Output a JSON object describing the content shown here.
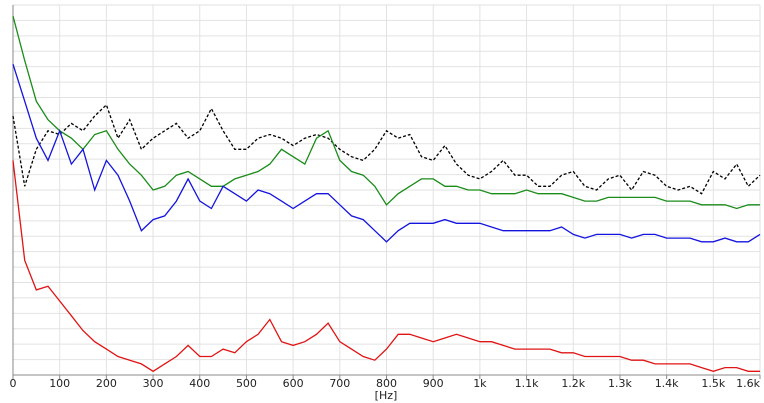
{
  "chart_data": {
    "type": "line",
    "xlabel": "[Hz]",
    "x": [
      0,
      25,
      50,
      75,
      100,
      125,
      150,
      175,
      200,
      225,
      250,
      275,
      300,
      325,
      350,
      375,
      400,
      425,
      450,
      475,
      500,
      525,
      550,
      575,
      600,
      625,
      650,
      675,
      700,
      725,
      750,
      775,
      800,
      825,
      850,
      875,
      900,
      925,
      950,
      975,
      1000,
      1025,
      1050,
      1075,
      1100,
      1125,
      1150,
      1175,
      1200,
      1225,
      1250,
      1275,
      1300,
      1325,
      1350,
      1375,
      1400,
      1425,
      1450,
      1475,
      1500,
      1525,
      1550,
      1575,
      1600
    ],
    "series": [
      {
        "color": "#000000",
        "dash": true,
        "values": [
          70,
          51,
          61,
          66,
          65,
          68,
          66,
          70,
          73,
          64,
          69,
          61,
          64,
          66,
          68,
          64,
          66,
          72,
          66,
          61,
          61,
          64,
          65,
          64,
          62,
          64,
          65,
          64,
          61,
          59,
          58,
          61,
          66,
          64,
          65,
          59,
          58,
          62,
          57,
          54,
          53,
          55,
          58,
          54,
          54,
          51,
          51,
          54,
          55,
          51,
          50,
          53,
          54,
          50,
          55,
          54,
          51,
          50,
          51,
          49,
          55,
          53,
          57,
          51,
          54
        ]
      },
      {
        "color": "#1a8c1a",
        "dash": false,
        "values": [
          97,
          85,
          74,
          69,
          66,
          64,
          61,
          65,
          66,
          61,
          57,
          54,
          50,
          51,
          54,
          55,
          53,
          51,
          51,
          53,
          54,
          55,
          57,
          61,
          59,
          57,
          64,
          66,
          58,
          55,
          54,
          51,
          46,
          49,
          51,
          53,
          53,
          51,
          51,
          50,
          50,
          49,
          49,
          49,
          50,
          49,
          49,
          49,
          48,
          47,
          47,
          48,
          48,
          48,
          48,
          48,
          47,
          47,
          47,
          46,
          46,
          46,
          45,
          46,
          46
        ]
      },
      {
        "color": "#1414e0",
        "dash": false,
        "values": [
          84,
          74,
          64,
          58,
          66,
          57,
          61,
          50,
          58,
          54,
          47,
          39,
          42,
          43,
          47,
          53,
          47,
          45,
          51,
          49,
          47,
          50,
          49,
          47,
          45,
          47,
          49,
          49,
          46,
          43,
          42,
          39,
          36,
          39,
          41,
          41,
          41,
          42,
          41,
          41,
          41,
          40,
          39,
          39,
          39,
          39,
          39,
          40,
          38,
          37,
          38,
          38,
          38,
          37,
          38,
          38,
          37,
          37,
          37,
          36,
          36,
          37,
          36,
          36,
          38
        ]
      },
      {
        "color": "#e01414",
        "dash": false,
        "values": [
          58,
          31,
          23,
          24,
          20,
          16,
          12,
          9,
          7,
          5,
          4,
          3,
          1,
          3,
          5,
          8,
          5,
          5,
          7,
          6,
          9,
          11,
          15,
          9,
          8,
          9,
          11,
          14,
          9,
          7,
          5,
          4,
          7,
          11,
          11,
          10,
          9,
          10,
          11,
          10,
          9,
          9,
          8,
          7,
          7,
          7,
          7,
          6,
          6,
          5,
          5,
          5,
          5,
          4,
          4,
          3,
          3,
          3,
          3,
          2,
          1,
          2,
          2,
          1,
          1
        ]
      }
    ],
    "xlim": [
      0,
      1600
    ],
    "ylim": [
      0,
      100
    ],
    "xticks": [
      0,
      100,
      200,
      300,
      400,
      500,
      600,
      700,
      800,
      900,
      {
        "value": 1000,
        "label": "1k"
      },
      {
        "value": 1100,
        "label": "1.1k"
      },
      {
        "value": 1200,
        "label": "1.2k"
      },
      {
        "value": 1300,
        "label": "1.3k"
      },
      {
        "value": 1400,
        "label": "1.4k"
      },
      {
        "value": 1500,
        "label": "1.5k"
      },
      {
        "value": 1600,
        "label": "1.6k"
      }
    ],
    "grid": true
  }
}
